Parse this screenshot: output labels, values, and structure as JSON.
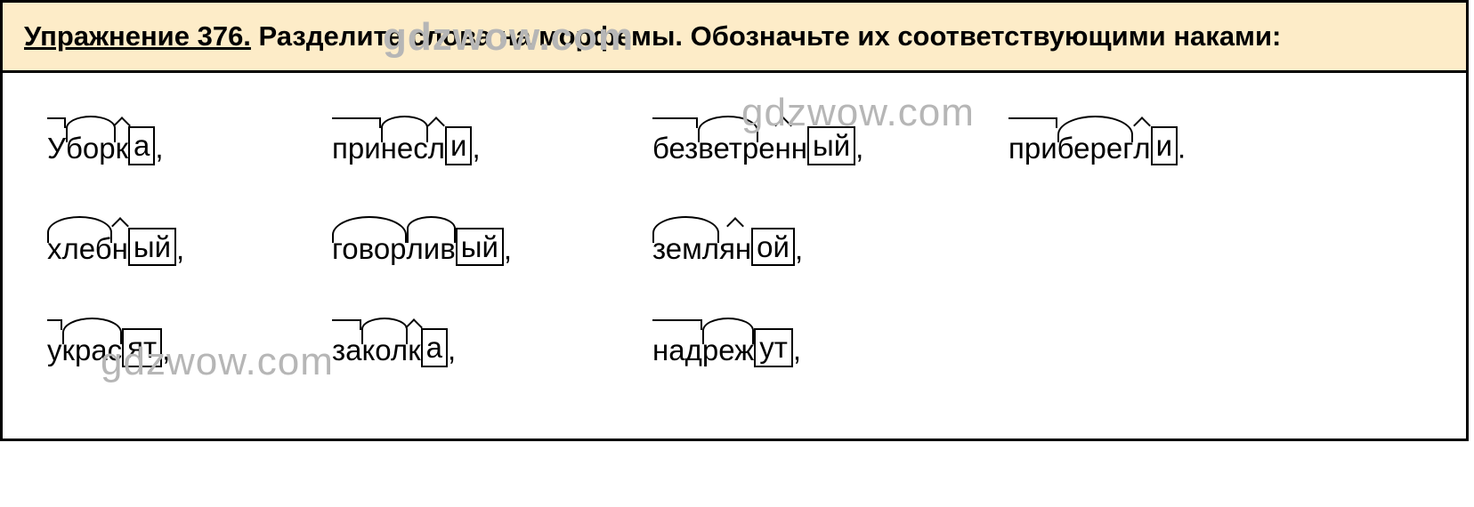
{
  "header": {
    "label": "Упражнение 376.",
    "task": " Разделите слова на морфемы. Обозначьте их соответствующими наками:"
  },
  "watermarks": {
    "top": "gdzwow.com",
    "row1_right": "gdzwow.com",
    "row3_left": "gdzwow.com"
  },
  "rows": [
    [
      {
        "parts": [
          {
            "t": "У",
            "m": "pre"
          },
          {
            "t": "бор",
            "m": "root"
          },
          {
            "t": "к",
            "m": "suf"
          },
          {
            "t": "а",
            "m": "box"
          }
        ],
        "after": ","
      },
      {
        "parts": [
          {
            "t": "при",
            "m": "pre"
          },
          {
            "t": "нес",
            "m": "root"
          },
          {
            "t": "л",
            "m": "suf"
          },
          {
            "t": "и",
            "m": "box"
          }
        ],
        "after": ","
      },
      {
        "parts": [
          {
            "t": "без",
            "m": "pre"
          },
          {
            "t": "ветр",
            "m": "root"
          },
          {
            "t": "енн",
            "m": "suf"
          },
          {
            "t": "ый",
            "m": "box"
          }
        ],
        "after": ","
      },
      {
        "parts": [
          {
            "t": "при",
            "m": "pre"
          },
          {
            "t": "берег",
            "m": "root"
          },
          {
            "t": "л",
            "m": "suf"
          },
          {
            "t": "и",
            "m": "box"
          }
        ],
        "after": "."
      }
    ],
    [
      {
        "parts": [
          {
            "t": "хлеб",
            "m": "root"
          },
          {
            "t": "н",
            "m": "suf"
          },
          {
            "t": "ый",
            "m": "box"
          }
        ],
        "after": ","
      },
      {
        "parts": [
          {
            "t": "говор",
            "m": "root"
          },
          {
            "t": "лив",
            "m": "suf-roof"
          },
          {
            "t": "ый",
            "m": "box"
          }
        ],
        "after": ","
      },
      {
        "parts": [
          {
            "t": "земл",
            "m": "root"
          },
          {
            "t": "ян",
            "m": "suf"
          },
          {
            "t": "ой",
            "m": "box"
          }
        ],
        "after": ","
      },
      null
    ],
    [
      {
        "parts": [
          {
            "t": "у",
            "m": "pre"
          },
          {
            "t": "крас",
            "m": "root"
          },
          {
            "t": "ят",
            "m": "box"
          }
        ],
        "after": ","
      },
      {
        "parts": [
          {
            "t": "за",
            "m": "pre"
          },
          {
            "t": "кол",
            "m": "root"
          },
          {
            "t": "к",
            "m": "suf"
          },
          {
            "t": "а",
            "m": "box"
          }
        ],
        "after": ","
      },
      {
        "parts": [
          {
            "t": "над",
            "m": "pre"
          },
          {
            "t": "реж",
            "m": "root"
          },
          {
            "t": "ут",
            "m": "box"
          }
        ],
        "after": ","
      },
      null
    ]
  ]
}
